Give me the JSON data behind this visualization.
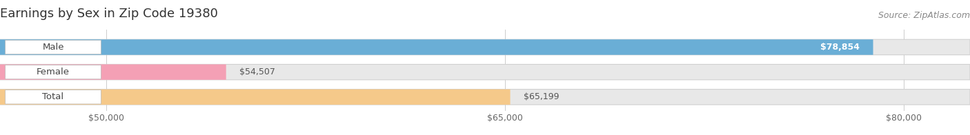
{
  "title": "Earnings by Sex in Zip Code 19380",
  "source": "Source: ZipAtlas.com",
  "categories": [
    "Male",
    "Female",
    "Total"
  ],
  "values": [
    78854,
    54507,
    65199
  ],
  "x_min": 46000,
  "x_max": 82500,
  "display_min": 46000,
  "bar_colors": [
    "#6aaed6",
    "#f4a0b5",
    "#f5c98a"
  ],
  "bar_bg_color": "#e8e8e8",
  "tick_labels": [
    "$50,000",
    "$65,000",
    "$80,000"
  ],
  "tick_values": [
    50000,
    65000,
    80000
  ],
  "value_labels": [
    "$78,854",
    "$54,507",
    "$65,199"
  ],
  "value_inside": [
    true,
    false,
    false
  ],
  "bar_height": 0.62,
  "title_fontsize": 13,
  "source_fontsize": 9,
  "label_fontsize": 9.5,
  "value_fontsize": 9
}
